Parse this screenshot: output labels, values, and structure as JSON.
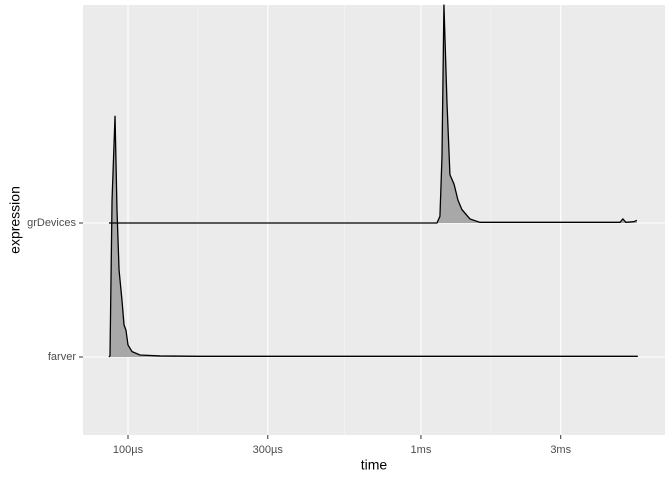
{
  "chart_data": {
    "type": "ridgeline",
    "x_label": "time",
    "y_label": "expression",
    "log_x": true,
    "grid": true,
    "categories": [
      "farver",
      "grDevices"
    ],
    "xlim": [
      7.02e-05,
      0.00681
    ],
    "xticks": [
      {
        "value": 0.0001,
        "label": "100µs"
      },
      {
        "value": 0.0003,
        "label": "300µs"
      },
      {
        "value": 0.001,
        "label": "1ms"
      },
      {
        "value": 0.003,
        "label": "3ms"
      }
    ],
    "series": [
      {
        "name": "farver",
        "color": "#000000",
        "fill": "#a8a8a8",
        "x": [
          8.61e-05,
          8.68e-05,
          8.82e-05,
          9.03e-05,
          9.17e-05,
          9.32e-05,
          9.54e-05,
          9.69e-05,
          9.84e-05,
          0.0001,
          0.0001032,
          0.0001099,
          0.0001286,
          0.0001761,
          0.0055
        ],
        "values": [
          0,
          0.01,
          1.17,
          1.8,
          1.1,
          0.65,
          0.42,
          0.24,
          0.2,
          0.09,
          0.04,
          0.015,
          0.008,
          0.005,
          0.005
        ]
      },
      {
        "name": "grDevices",
        "color": "#000000",
        "fill": "#a8a8a8",
        "x": [
          8.61e-05,
          0.001134,
          0.001161,
          0.00118,
          0.001198,
          0.001227,
          0.001256,
          0.001297,
          0.001338,
          0.00138,
          0.00147,
          0.00159,
          0.00478,
          0.00489,
          0.00501,
          0.00533,
          0.00546
        ],
        "values": [
          0,
          0,
          0.05,
          0.5,
          1.63,
          0.9,
          0.36,
          0.29,
          0.17,
          0.1,
          0.03,
          0.005,
          0.005,
          0.03,
          0.005,
          0.01,
          0.02
        ]
      }
    ]
  }
}
